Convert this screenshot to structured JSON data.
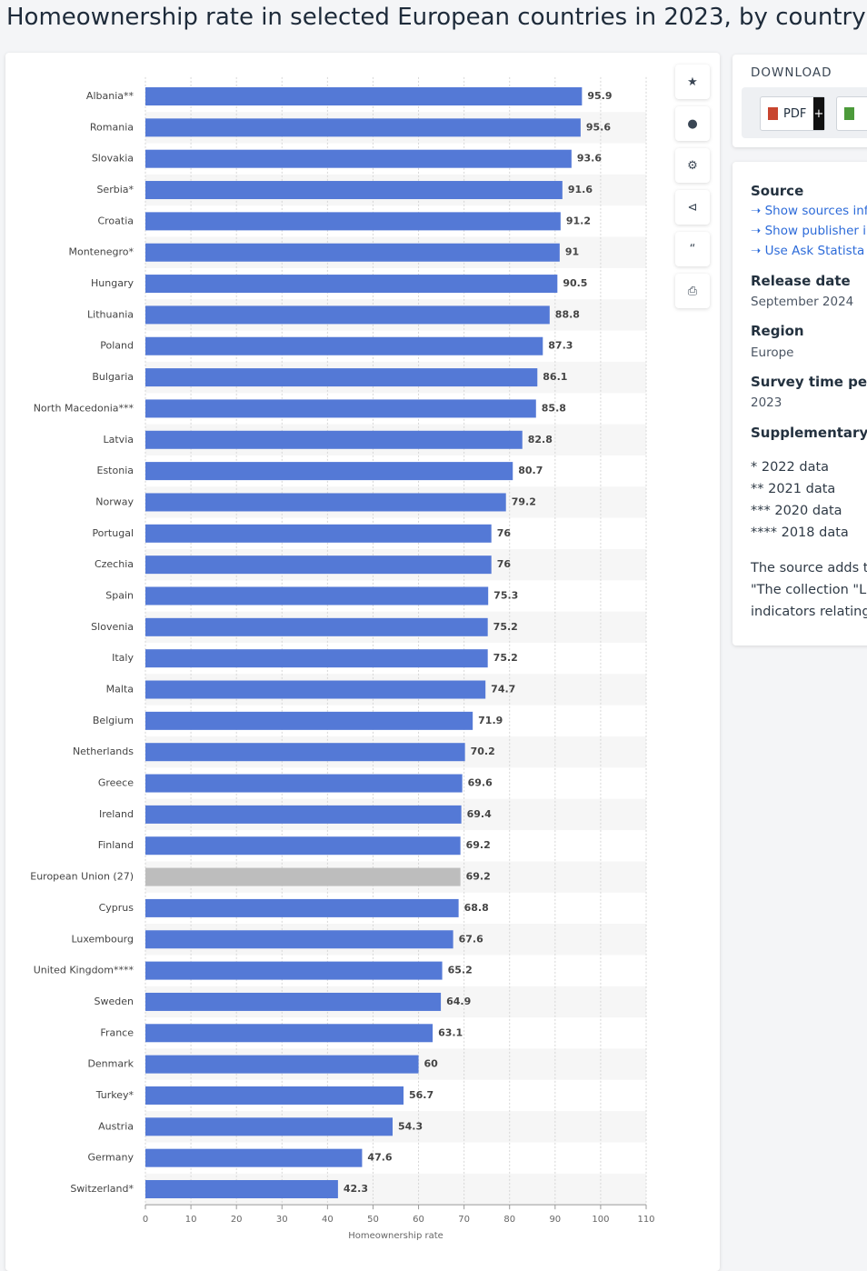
{
  "header": {
    "title": "Homeownership rate in selected European countries in 2023, by country"
  },
  "chart_data": {
    "type": "hbar",
    "categories": [
      "Albania**",
      "Romania",
      "Slovakia",
      "Serbia*",
      "Croatia",
      "Montenegro*",
      "Hungary",
      "Lithuania",
      "Poland",
      "Bulgaria",
      "North Macedonia***",
      "Latvia",
      "Estonia",
      "Norway",
      "Portugal",
      "Czechia",
      "Spain",
      "Slovenia",
      "Italy",
      "Malta",
      "Belgium",
      "Netherlands",
      "Greece",
      "Ireland",
      "Finland",
      "European Union (27)",
      "Cyprus",
      "Luxembourg",
      "United Kingdom****",
      "Sweden",
      "France",
      "Denmark",
      "Turkey*",
      "Austria",
      "Germany",
      "Switzerland*"
    ],
    "values": [
      95.9,
      95.6,
      93.6,
      91.6,
      91.2,
      91,
      90.5,
      88.8,
      87.3,
      86.1,
      85.8,
      82.8,
      80.7,
      79.2,
      76,
      76,
      75.3,
      75.2,
      75.2,
      74.7,
      71.9,
      70.2,
      69.6,
      69.4,
      69.2,
      69.2,
      68.8,
      67.6,
      65.2,
      64.9,
      63.1,
      60,
      56.7,
      54.3,
      47.6,
      42.3
    ],
    "colors": [
      "#5479d6",
      "#5479d6",
      "#5479d6",
      "#5479d6",
      "#5479d6",
      "#5479d6",
      "#5479d6",
      "#5479d6",
      "#5479d6",
      "#5479d6",
      "#5479d6",
      "#5479d6",
      "#5479d6",
      "#5479d6",
      "#5479d6",
      "#5479d6",
      "#5479d6",
      "#5479d6",
      "#5479d6",
      "#5479d6",
      "#5479d6",
      "#5479d6",
      "#5479d6",
      "#5479d6",
      "#5479d6",
      "#bdbdbd",
      "#5479d6",
      "#5479d6",
      "#5479d6",
      "#5479d6",
      "#5479d6",
      "#5479d6",
      "#5479d6",
      "#5479d6",
      "#5479d6",
      "#5479d6"
    ],
    "xlabel": "Homeownership rate",
    "xlim": [
      0,
      110
    ],
    "xticks": [
      0,
      10,
      20,
      30,
      40,
      50,
      60,
      70,
      80,
      90,
      100,
      110
    ],
    "grid": true
  },
  "download": {
    "title": "DOWNLOAD",
    "pdf": "PDF",
    "plus": "+"
  },
  "details": {
    "source_title": "Source",
    "source_links": [
      "Show sources info",
      "Show publisher in",
      "Use Ask Statista R"
    ],
    "release_title": "Release date",
    "release": "September 2024",
    "region_title": "Region",
    "region": "Europe",
    "survey_title": "Survey time perio",
    "survey": "2023",
    "supp_title": "Supplementary n",
    "notes": [
      "* 2022 data",
      "** 2021 data",
      "*** 2020 data",
      "**** 2018 data"
    ],
    "text": [
      "The source adds th",
      "\"The collection \"Liv",
      "indicators relating"
    ]
  }
}
